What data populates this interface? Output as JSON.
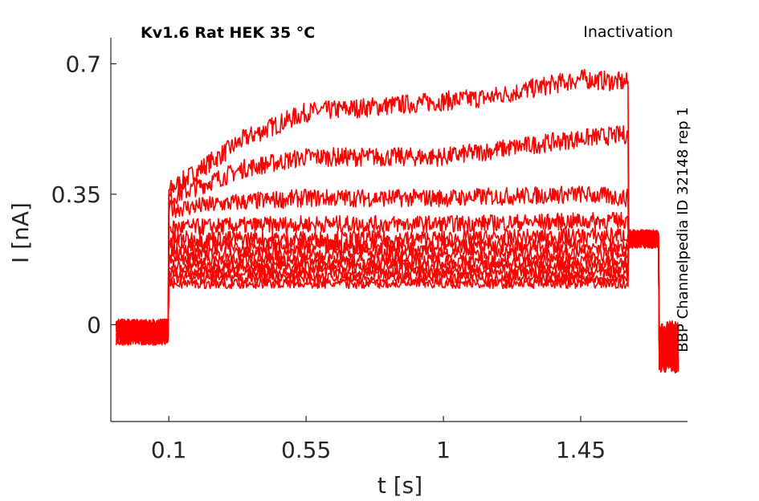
{
  "chart_data": {
    "type": "line",
    "title": "Kv1.6  Rat  HEK  35 °C",
    "subtitle": "Inactivation",
    "side_label": "BBP Channelpedia ID 32148 rep 1",
    "xlabel": "t [s]",
    "ylabel": "I [nA]",
    "xlim": [
      -0.09,
      1.8
    ],
    "ylim": [
      -0.26,
      0.77
    ],
    "xticks": [
      0.1,
      0.55,
      1,
      1.45
    ],
    "xtick_labels": [
      "0.1",
      "0.55",
      "1",
      "1.45"
    ],
    "yticks": [
      0,
      0.35,
      0.7
    ],
    "ytick_labels": [
      "0",
      "0.35",
      "0.7"
    ],
    "grid": false,
    "line_color": "#ff0000",
    "pulse": {
      "start": 0.1,
      "end": 1.605,
      "baseline": -0.02,
      "tail_end": 1.705,
      "tail_level": 0.23
    },
    "series": [
      {
        "x": [
          0.1,
          0.35,
          0.55,
          1.0,
          1.15,
          1.45,
          1.6
        ],
        "values": [
          0.36,
          0.5,
          0.57,
          0.6,
          0.61,
          0.66,
          0.65
        ]
      },
      {
        "x": [
          0.1,
          0.35,
          0.55,
          1.0,
          1.45,
          1.6
        ],
        "values": [
          0.34,
          0.42,
          0.45,
          0.45,
          0.5,
          0.51
        ]
      },
      {
        "x": [
          0.1,
          0.35,
          0.55,
          1.0,
          1.45,
          1.6
        ],
        "values": [
          0.31,
          0.33,
          0.34,
          0.34,
          0.35,
          0.34
        ]
      },
      {
        "x": [
          0.1,
          0.55,
          1.0,
          1.6
        ],
        "values": [
          0.26,
          0.27,
          0.27,
          0.28
        ]
      },
      {
        "x": [
          0.1,
          0.55,
          1.0,
          1.6
        ],
        "values": [
          0.23,
          0.23,
          0.23,
          0.24
        ]
      },
      {
        "x": [
          0.1,
          0.55,
          1.0,
          1.6
        ],
        "values": [
          0.21,
          0.21,
          0.21,
          0.21
        ]
      },
      {
        "x": [
          0.1,
          0.55,
          1.0,
          1.6
        ],
        "values": [
          0.19,
          0.19,
          0.19,
          0.19
        ]
      },
      {
        "x": [
          0.1,
          0.55,
          1.0,
          1.6
        ],
        "values": [
          0.17,
          0.17,
          0.17,
          0.17
        ]
      },
      {
        "x": [
          0.1,
          0.55,
          1.0,
          1.6
        ],
        "values": [
          0.155,
          0.155,
          0.155,
          0.155
        ]
      },
      {
        "x": [
          0.1,
          0.55,
          1.0,
          1.6
        ],
        "values": [
          0.14,
          0.14,
          0.14,
          0.14
        ]
      },
      {
        "x": [
          0.1,
          0.55,
          1.0,
          1.6
        ],
        "values": [
          0.125,
          0.125,
          0.125,
          0.125
        ]
      },
      {
        "x": [
          0.1,
          0.55,
          1.0,
          1.6
        ],
        "values": [
          0.11,
          0.11,
          0.11,
          0.11
        ]
      }
    ]
  }
}
